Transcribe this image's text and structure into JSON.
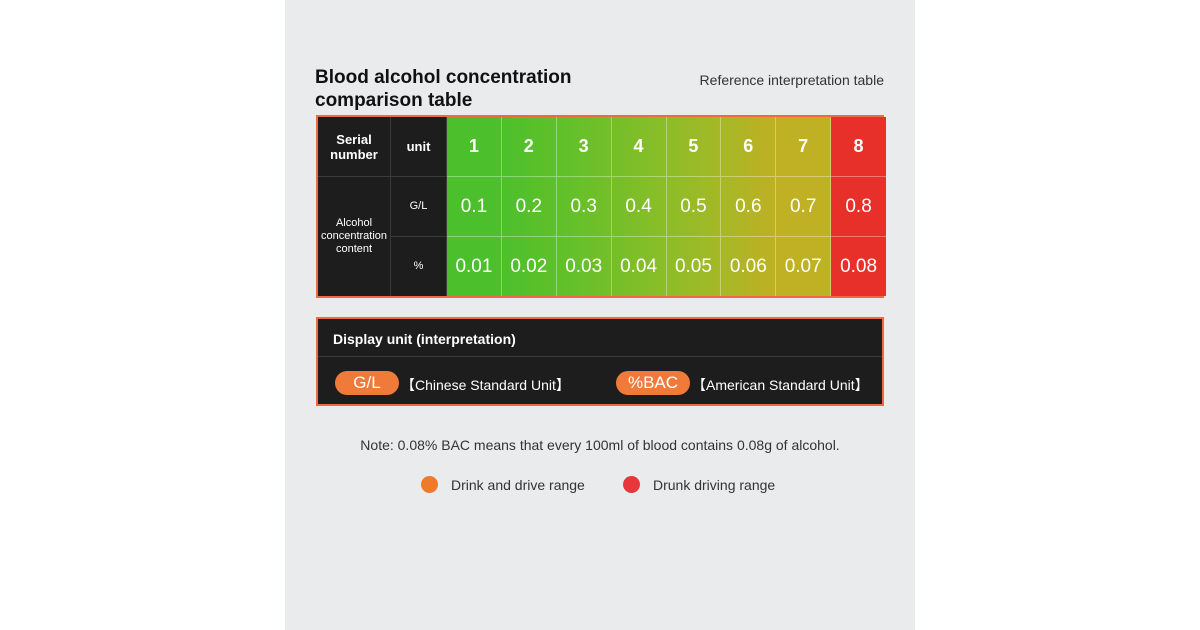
{
  "title": "Blood alcohol concentration comparison table",
  "subtitle": "Reference interpretation table",
  "table": {
    "header_serial": "Serial number",
    "header_unit": "unit",
    "row_label": "Alcohol concentration content",
    "unit_gl": "G/L",
    "unit_pct": "%",
    "serials": [
      "1",
      "2",
      "3",
      "4",
      "5",
      "6",
      "7",
      "8"
    ],
    "gl_values": [
      "0.1",
      "0.2",
      "0.3",
      "0.4",
      "0.5",
      "0.6",
      "0.7",
      "0.8"
    ],
    "pct_values": [
      "0.01",
      "0.02",
      "0.03",
      "0.04",
      "0.05",
      "0.06",
      "0.07",
      "0.08"
    ],
    "column_colors": [
      "#4cc02c",
      "#4cc02c",
      "#5fc02a",
      "#74bf29",
      "#8cbd28",
      "#a6b826",
      "#bfb024",
      "#e8302a"
    ]
  },
  "display_unit": {
    "title": "Display unit (interpretation)",
    "gl_pill": "G/L",
    "gl_note": "【Chinese Standard Unit】",
    "bac_pill": "%BAC",
    "bac_note": "【American Standard Unit】"
  },
  "note": "Note: 0.08% BAC means that every 100ml of blood contains 0.08g of alcohol.",
  "legend": {
    "drink_drive_label": "Drink and drive range",
    "drink_drive_color": "#ef7a2a",
    "drunk_drive_label": "Drunk driving range",
    "drunk_drive_color": "#e8373a"
  }
}
